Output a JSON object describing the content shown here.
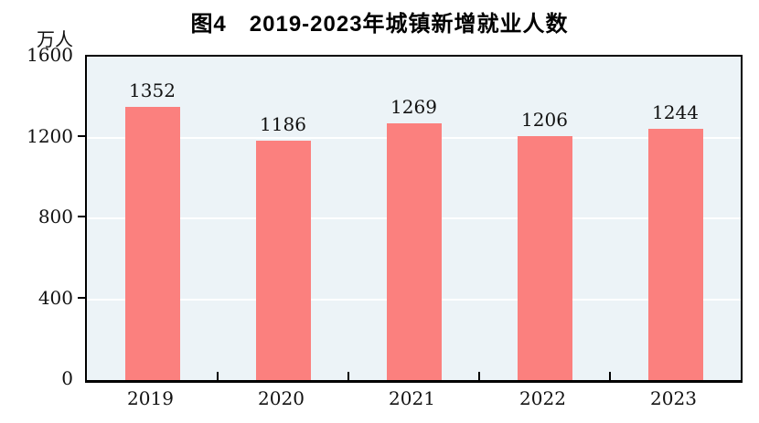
{
  "title": "图4　2019-2023年城镇新增就业人数",
  "unit_label": "万人",
  "colors": {
    "bar": "#FB807E",
    "plot_bg": "#ECF3F7",
    "gridline": "#FFFFFF",
    "axis": "#000000",
    "text": "#111111"
  },
  "chart_data": {
    "type": "bar",
    "title": "图4　2019-2023年城镇新增就业人数",
    "categories": [
      "2019",
      "2020",
      "2021",
      "2022",
      "2023"
    ],
    "values": [
      1352,
      1186,
      1269,
      1206,
      1244
    ],
    "xlabel": "",
    "ylabel": "万人",
    "ylim": [
      0,
      1600
    ],
    "yticks": [
      0,
      400,
      800,
      1200,
      1600
    ],
    "grid": true,
    "gridline_style": "white-on-light-blue",
    "data_labels": true,
    "legend": "none"
  }
}
